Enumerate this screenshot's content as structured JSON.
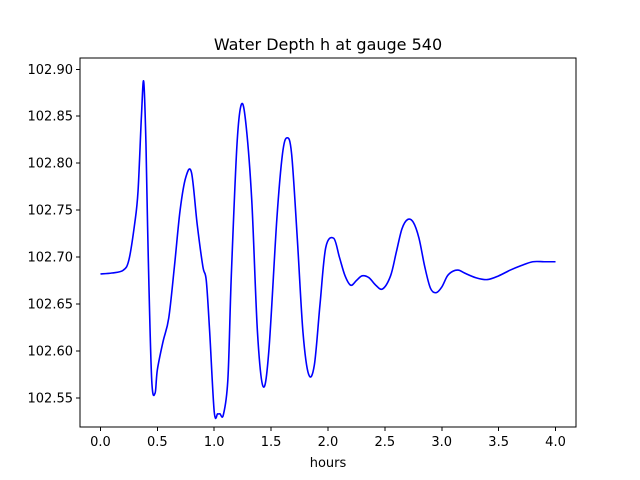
{
  "chart_data": {
    "type": "line",
    "title": "Water Depth h at gauge 540",
    "xlabel": "hours",
    "ylabel": "",
    "xlim": [
      -0.18,
      4.18
    ],
    "ylim": [
      102.519,
      102.912
    ],
    "grid": false,
    "legend": "none",
    "xticks": [
      0.0,
      0.5,
      1.0,
      1.5,
      2.0,
      2.5,
      3.0,
      3.5,
      4.0
    ],
    "xtick_labels": [
      "0.0",
      "0.5",
      "1.0",
      "1.5",
      "2.0",
      "2.5",
      "3.0",
      "3.5",
      "4.0"
    ],
    "yticks": [
      102.55,
      102.6,
      102.65,
      102.7,
      102.75,
      102.8,
      102.85,
      102.9
    ],
    "ytick_labels": [
      "102.55",
      "102.60",
      "102.65",
      "102.70",
      "102.75",
      "102.80",
      "102.85",
      "102.90"
    ],
    "series": [
      {
        "color": "#0000ff",
        "x": [
          0.0,
          0.1,
          0.2,
          0.25,
          0.3,
          0.33,
          0.36,
          0.38,
          0.4,
          0.42,
          0.45,
          0.48,
          0.5,
          0.55,
          0.6,
          0.65,
          0.7,
          0.75,
          0.8,
          0.85,
          0.9,
          0.93,
          0.96,
          1.0,
          1.03,
          1.05,
          1.08,
          1.12,
          1.15,
          1.2,
          1.24,
          1.28,
          1.33,
          1.38,
          1.43,
          1.48,
          1.55,
          1.6,
          1.64,
          1.68,
          1.73,
          1.78,
          1.83,
          1.88,
          1.93,
          1.98,
          2.05,
          2.1,
          2.15,
          2.2,
          2.25,
          2.3,
          2.36,
          2.42,
          2.48,
          2.55,
          2.6,
          2.65,
          2.7,
          2.75,
          2.8,
          2.85,
          2.9,
          2.95,
          3.0,
          3.05,
          3.1,
          3.15,
          3.2,
          3.3,
          3.4,
          3.5,
          3.6,
          3.7,
          3.8,
          3.9,
          4.0
        ],
        "values": [
          102.682,
          102.683,
          102.686,
          102.697,
          102.735,
          102.77,
          102.85,
          102.887,
          102.82,
          102.7,
          102.57,
          102.555,
          102.58,
          102.61,
          102.635,
          102.69,
          102.75,
          102.785,
          102.79,
          102.735,
          102.69,
          102.675,
          102.62,
          102.535,
          102.533,
          102.533,
          102.532,
          102.57,
          102.68,
          102.82,
          102.863,
          102.84,
          102.76,
          102.62,
          102.562,
          102.6,
          102.74,
          102.81,
          102.827,
          102.81,
          102.72,
          102.62,
          102.575,
          102.585,
          102.65,
          102.71,
          102.72,
          102.7,
          102.68,
          102.67,
          102.675,
          102.68,
          102.678,
          102.67,
          102.666,
          102.68,
          102.705,
          102.73,
          102.74,
          102.737,
          102.72,
          102.69,
          102.667,
          102.662,
          102.668,
          102.68,
          102.685,
          102.686,
          102.683,
          102.678,
          102.676,
          102.68,
          102.686,
          102.691,
          102.695,
          102.695,
          102.695
        ]
      }
    ]
  }
}
